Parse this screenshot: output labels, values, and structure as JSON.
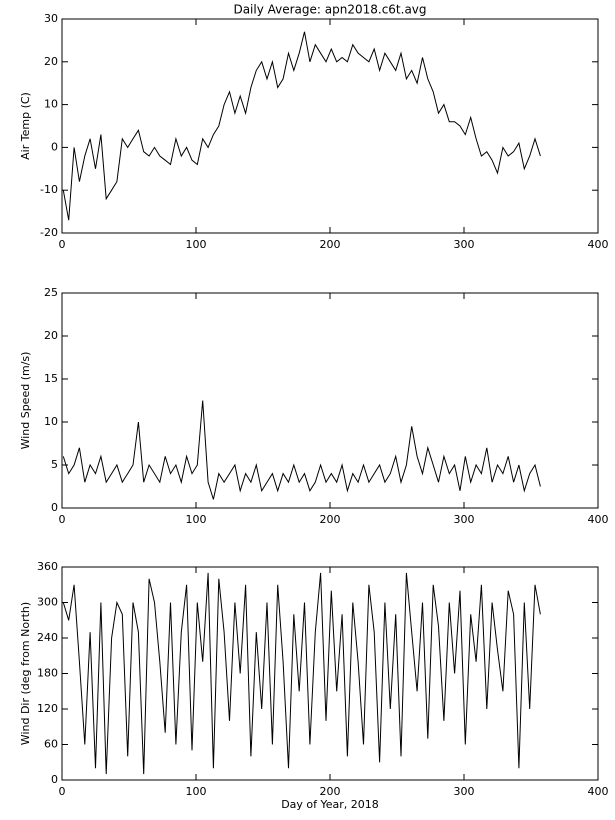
{
  "chart_data": [
    {
      "type": "line",
      "title": "Daily Average: apn2018.c6t.avg",
      "y_label": "Air Temp (C)",
      "color": "#000000",
      "xlim": [
        0,
        400
      ],
      "xticks": [
        0,
        100,
        200,
        300,
        400
      ],
      "ylim": [
        -20,
        30
      ],
      "yticks": [
        -20,
        -10,
        0,
        10,
        20,
        30
      ],
      "x": [
        1,
        5,
        9,
        13,
        17,
        21,
        25,
        29,
        33,
        37,
        41,
        45,
        49,
        53,
        57,
        61,
        65,
        69,
        73,
        77,
        81,
        85,
        89,
        93,
        97,
        101,
        105,
        109,
        113,
        117,
        121,
        125,
        129,
        133,
        137,
        141,
        145,
        149,
        153,
        157,
        161,
        165,
        169,
        173,
        177,
        181,
        185,
        189,
        193,
        197,
        201,
        205,
        209,
        213,
        217,
        221,
        225,
        229,
        233,
        237,
        241,
        245,
        249,
        253,
        257,
        261,
        265,
        269,
        273,
        277,
        281,
        285,
        289,
        293,
        297,
        301,
        305,
        309,
        313,
        317,
        321,
        325,
        329,
        333,
        337,
        341,
        345,
        349,
        353,
        357
      ],
      "values": [
        -10,
        -17,
        0,
        -8,
        -2,
        2,
        -5,
        3,
        -12,
        -10,
        -8,
        2,
        0,
        2,
        4,
        -1,
        -2,
        0,
        -2,
        -3,
        -4,
        2,
        -2,
        0,
        -3,
        -4,
        2,
        0,
        3,
        5,
        10,
        13,
        8,
        12,
        8,
        14,
        18,
        20,
        16,
        20,
        14,
        16,
        22,
        18,
        22,
        27,
        20,
        24,
        22,
        20,
        23,
        20,
        21,
        20,
        24,
        22,
        21,
        20,
        23,
        18,
        22,
        20,
        18,
        22,
        16,
        18,
        15,
        21,
        16,
        13,
        8,
        10,
        6,
        6,
        5,
        3,
        7,
        2,
        -2,
        -1,
        -3,
        -6,
        0,
        -2,
        -1,
        1,
        -5,
        -2,
        2,
        -2
      ]
    },
    {
      "type": "line",
      "y_label": "Wind Speed (m/s)",
      "color": "#000000",
      "xlim": [
        0,
        400
      ],
      "xticks": [
        0,
        100,
        200,
        300,
        400
      ],
      "ylim": [
        0,
        25
      ],
      "yticks": [
        0,
        5,
        10,
        15,
        20,
        25
      ],
      "x": [
        1,
        5,
        9,
        13,
        17,
        21,
        25,
        29,
        33,
        37,
        41,
        45,
        49,
        53,
        57,
        61,
        65,
        69,
        73,
        77,
        81,
        85,
        89,
        93,
        97,
        101,
        105,
        109,
        113,
        117,
        121,
        125,
        129,
        133,
        137,
        141,
        145,
        149,
        153,
        157,
        161,
        165,
        169,
        173,
        177,
        181,
        185,
        189,
        193,
        197,
        201,
        205,
        209,
        213,
        217,
        221,
        225,
        229,
        233,
        237,
        241,
        245,
        249,
        253,
        257,
        261,
        265,
        269,
        273,
        277,
        281,
        285,
        289,
        293,
        297,
        301,
        305,
        309,
        313,
        317,
        321,
        325,
        329,
        333,
        337,
        341,
        345,
        349,
        353,
        357
      ],
      "values": [
        6,
        4,
        5,
        7,
        3,
        5,
        4,
        6,
        3,
        4,
        5,
        3,
        4,
        5,
        10,
        3,
        5,
        4,
        3,
        6,
        4,
        5,
        3,
        6,
        4,
        5,
        12.5,
        3,
        1,
        4,
        3,
        4,
        5,
        2,
        4,
        3,
        5,
        2,
        3,
        4,
        2,
        4,
        3,
        5,
        3,
        4,
        2,
        3,
        5,
        3,
        4,
        3,
        5,
        2,
        4,
        3,
        5,
        3,
        4,
        5,
        3,
        4,
        6,
        3,
        5,
        9.5,
        6,
        4,
        7,
        5,
        3,
        6,
        4,
        5,
        2,
        6,
        3,
        5,
        4,
        7,
        3,
        5,
        4,
        6,
        3,
        5,
        2,
        4,
        5,
        2.5
      ]
    },
    {
      "type": "line",
      "y_label": "Wind Dir (deg from North)",
      "x_label": "Day of Year, 2018",
      "color": "#000000",
      "xlim": [
        0,
        400
      ],
      "xticks": [
        0,
        100,
        200,
        300,
        400
      ],
      "ylim": [
        0,
        360
      ],
      "yticks": [
        0,
        60,
        120,
        180,
        240,
        300,
        360
      ],
      "x": [
        1,
        5,
        9,
        13,
        17,
        21,
        25,
        29,
        33,
        37,
        41,
        45,
        49,
        53,
        57,
        61,
        65,
        69,
        73,
        77,
        81,
        85,
        89,
        93,
        97,
        101,
        105,
        109,
        113,
        117,
        121,
        125,
        129,
        133,
        137,
        141,
        145,
        149,
        153,
        157,
        161,
        165,
        169,
        173,
        177,
        181,
        185,
        189,
        193,
        197,
        201,
        205,
        209,
        213,
        217,
        221,
        225,
        229,
        233,
        237,
        241,
        245,
        249,
        253,
        257,
        261,
        265,
        269,
        273,
        277,
        281,
        285,
        289,
        293,
        297,
        301,
        305,
        309,
        313,
        317,
        321,
        325,
        329,
        333,
        337,
        341,
        345,
        349,
        353,
        357
      ],
      "values": [
        300,
        270,
        330,
        200,
        60,
        250,
        20,
        300,
        10,
        240,
        300,
        280,
        40,
        300,
        250,
        10,
        340,
        300,
        200,
        80,
        300,
        60,
        250,
        330,
        50,
        300,
        200,
        350,
        20,
        340,
        250,
        100,
        300,
        180,
        330,
        40,
        250,
        120,
        300,
        60,
        330,
        200,
        20,
        280,
        150,
        300,
        60,
        250,
        350,
        100,
        320,
        150,
        280,
        40,
        300,
        200,
        60,
        330,
        250,
        30,
        300,
        120,
        280,
        40,
        350,
        250,
        150,
        300,
        70,
        330,
        260,
        100,
        300,
        180,
        320,
        60,
        280,
        200,
        330,
        120,
        300,
        220,
        150,
        320,
        280,
        20,
        300,
        120,
        330,
        280
      ]
    }
  ]
}
